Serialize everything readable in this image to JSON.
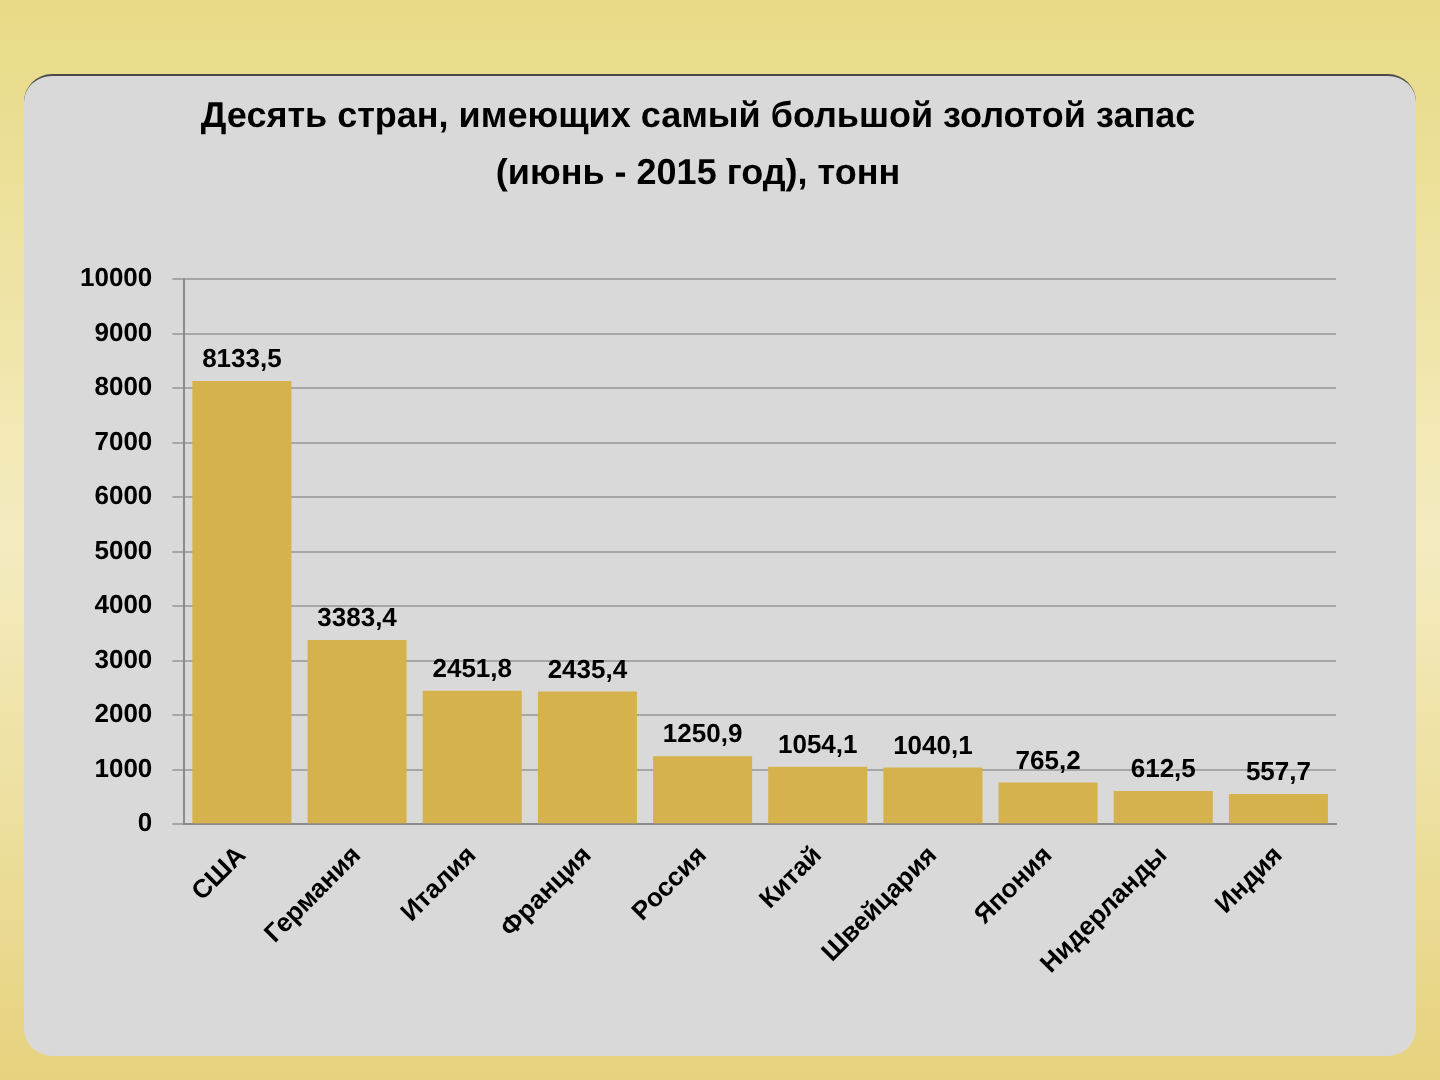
{
  "chart_data": {
    "type": "bar",
    "title": "Десять стран, имеющих самый большой золотой запас\n(июнь - 2015 год), тонн",
    "categories": [
      "США",
      "Германия",
      "Италия",
      "Франция",
      "Россия",
      "Китай",
      "Швейцария",
      "Япония",
      "Нидерланды",
      "Индия"
    ],
    "values": [
      8133.5,
      3383.4,
      2451.8,
      2435.4,
      1250.9,
      1054.1,
      1040.1,
      765.2,
      612.5,
      557.7
    ],
    "value_labels": [
      "8133,5",
      "3383,4",
      "2451,8",
      "2435,4",
      "1250,9",
      "1054,1",
      "1040,1",
      "765,2",
      "612,5",
      "557,7"
    ],
    "color": "#d6b24c",
    "ylim": [
      0,
      10000
    ],
    "yticks": [
      0,
      1000,
      2000,
      3000,
      4000,
      5000,
      6000,
      7000,
      8000,
      9000,
      10000
    ],
    "grid": "y"
  }
}
